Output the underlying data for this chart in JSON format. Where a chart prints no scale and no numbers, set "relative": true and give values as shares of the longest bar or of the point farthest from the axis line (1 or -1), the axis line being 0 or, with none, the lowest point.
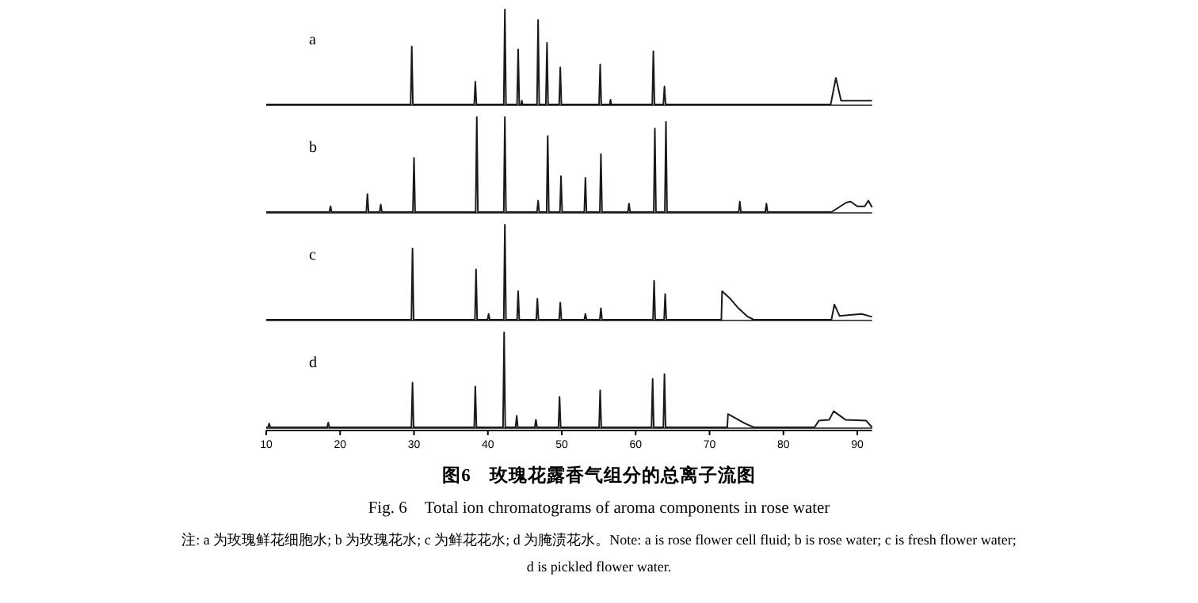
{
  "chart_data": [
    {
      "type": "line",
      "title": "a",
      "relative": true,
      "xlim": [
        10,
        92
      ],
      "tick_labels": false,
      "grid": false,
      "marker": "none",
      "line_style": "solid",
      "series": [
        {
          "color": "#1a1a1a",
          "x": [
            10,
            29.55,
            29.7,
            29.85,
            38.15,
            38.3,
            38.45,
            42.15,
            42.3,
            42.45,
            43.95,
            44.1,
            44.25,
            44.5,
            44.6,
            44.7,
            46.65,
            46.8,
            46.95,
            47.85,
            48.0,
            48.15,
            49.65,
            49.8,
            49.95,
            55.05,
            55.2,
            55.35,
            56.5,
            56.6,
            56.7,
            62.25,
            62.4,
            62.55,
            63.75,
            63.9,
            64.05,
            86.4,
            87.1,
            87.8,
            88.5,
            92
          ],
          "values": [
            0,
            0,
            0.61,
            0,
            0,
            0.24,
            0,
            0,
            1,
            0,
            0,
            0.58,
            0,
            0,
            0.04,
            0,
            0,
            0.89,
            0,
            0,
            0.65,
            0,
            0,
            0.39,
            0,
            0,
            0.42,
            0,
            0,
            0.05,
            0,
            0,
            0.56,
            0,
            0,
            0.19,
            0,
            0,
            0.28,
            0.04,
            0.04,
            0.04
          ]
        }
      ]
    },
    {
      "type": "line",
      "title": "b",
      "relative": true,
      "xlim": [
        10,
        92
      ],
      "tick_labels": false,
      "grid": false,
      "marker": "none",
      "line_style": "solid",
      "series": [
        {
          "color": "#1a1a1a",
          "x": [
            10,
            18.55,
            18.7,
            18.85,
            23.55,
            23.7,
            23.85,
            25.35,
            25.5,
            25.65,
            29.85,
            30.0,
            30.15,
            38.35,
            38.5,
            38.65,
            42.15,
            42.3,
            42.45,
            46.65,
            46.8,
            46.95,
            47.95,
            48.1,
            48.25,
            49.75,
            49.9,
            50.05,
            53.05,
            53.2,
            53.35,
            55.15,
            55.3,
            55.45,
            58.95,
            59.1,
            59.25,
            62.45,
            62.6,
            62.75,
            63.95,
            64.1,
            64.25,
            73.95,
            74.1,
            74.25,
            77.55,
            77.7,
            77.85,
            86.5,
            88.5,
            89.1,
            90,
            91,
            91.5,
            92
          ],
          "values": [
            0,
            0,
            0.06,
            0,
            0,
            0.19,
            0,
            0,
            0.08,
            0,
            0,
            0.57,
            0,
            0,
            1,
            0,
            0,
            1,
            0,
            0,
            0.12,
            0,
            0,
            0.8,
            0,
            0,
            0.38,
            0,
            0,
            0.36,
            0,
            0,
            0.61,
            0,
            0,
            0.09,
            0,
            0,
            0.88,
            0,
            0,
            0.95,
            0,
            0,
            0.11,
            0,
            0,
            0.09,
            0,
            0,
            0.1,
            0.11,
            0.06,
            0.06,
            0.12,
            0.05
          ]
        }
      ]
    },
    {
      "type": "line",
      "title": "c",
      "relative": true,
      "xlim": [
        10,
        92
      ],
      "tick_labels": false,
      "grid": false,
      "marker": "none",
      "line_style": "solid",
      "series": [
        {
          "color": "#1a1a1a",
          "x": [
            10,
            29.65,
            29.8,
            29.95,
            38.25,
            38.4,
            38.55,
            39.95,
            40.1,
            40.25,
            42.15,
            42.3,
            42.45,
            43.95,
            44.1,
            44.25,
            46.55,
            46.7,
            46.85,
            49.65,
            49.8,
            49.95,
            53.05,
            53.2,
            53.35,
            55.15,
            55.3,
            55.45,
            62.35,
            62.5,
            62.65,
            63.85,
            64.0,
            64.15,
            71.6,
            71.7,
            72.7,
            73.8,
            75.2,
            76,
            86.5,
            86.9,
            87.6,
            89,
            90.6,
            92
          ],
          "values": [
            0,
            0,
            0.75,
            0,
            0,
            0.53,
            0,
            0,
            0.06,
            0,
            0,
            1,
            0,
            0,
            0.3,
            0,
            0,
            0.22,
            0,
            0,
            0.18,
            0,
            0,
            0.06,
            0,
            0,
            0.12,
            0,
            0,
            0.41,
            0,
            0,
            0.27,
            0,
            0,
            0.3,
            0.23,
            0.13,
            0.03,
            0,
            0,
            0.16,
            0.04,
            0.05,
            0.06,
            0.03
          ]
        }
      ]
    },
    {
      "type": "line",
      "title": "d",
      "relative": true,
      "xlim": [
        10,
        92
      ],
      "xticks": [
        10,
        20,
        30,
        40,
        50,
        60,
        70,
        80,
        90
      ],
      "tick_labels": "x",
      "grid": false,
      "marker": "none",
      "line_style": "solid",
      "series": [
        {
          "color": "#1a1a1a",
          "x": [
            10,
            10.25,
            10.4,
            10.55,
            18.25,
            18.4,
            18.55,
            29.65,
            29.8,
            29.95,
            38.15,
            38.3,
            38.45,
            42.05,
            42.2,
            42.35,
            43.75,
            43.9,
            44.05,
            46.35,
            46.5,
            46.65,
            49.55,
            49.7,
            49.85,
            55.05,
            55.2,
            55.35,
            62.15,
            62.3,
            62.45,
            63.75,
            63.9,
            64.05,
            72.4,
            72.5,
            74.8,
            76,
            84.2,
            84.8,
            86.2,
            86.8,
            88.4,
            91.2,
            92
          ],
          "values": [
            0,
            0,
            0.04,
            0,
            0,
            0.05,
            0,
            0,
            0.47,
            0,
            0,
            0.43,
            0,
            0,
            1,
            0,
            0,
            0.12,
            0,
            0,
            0.08,
            0,
            0,
            0.32,
            0,
            0,
            0.39,
            0,
            0,
            0.51,
            0,
            0,
            0.56,
            0,
            0,
            0.14,
            0.04,
            0,
            0,
            0.07,
            0.08,
            0.17,
            0.08,
            0.07,
            0
          ]
        }
      ],
      "annotations": [
        "图6　玫瑰花露香气组分的总离子流图",
        "Fig. 6　Total ion chromatograms of aroma components in rose water",
        "注: a 为玫瑰鲜花细胞水; b 为玫瑰花水; c 为鲜花花水; d 为腌渍花水。Note: a is rose flower cell fluid; b is rose water; c is fresh flower water;",
        "d is pickled flower water."
      ]
    }
  ]
}
